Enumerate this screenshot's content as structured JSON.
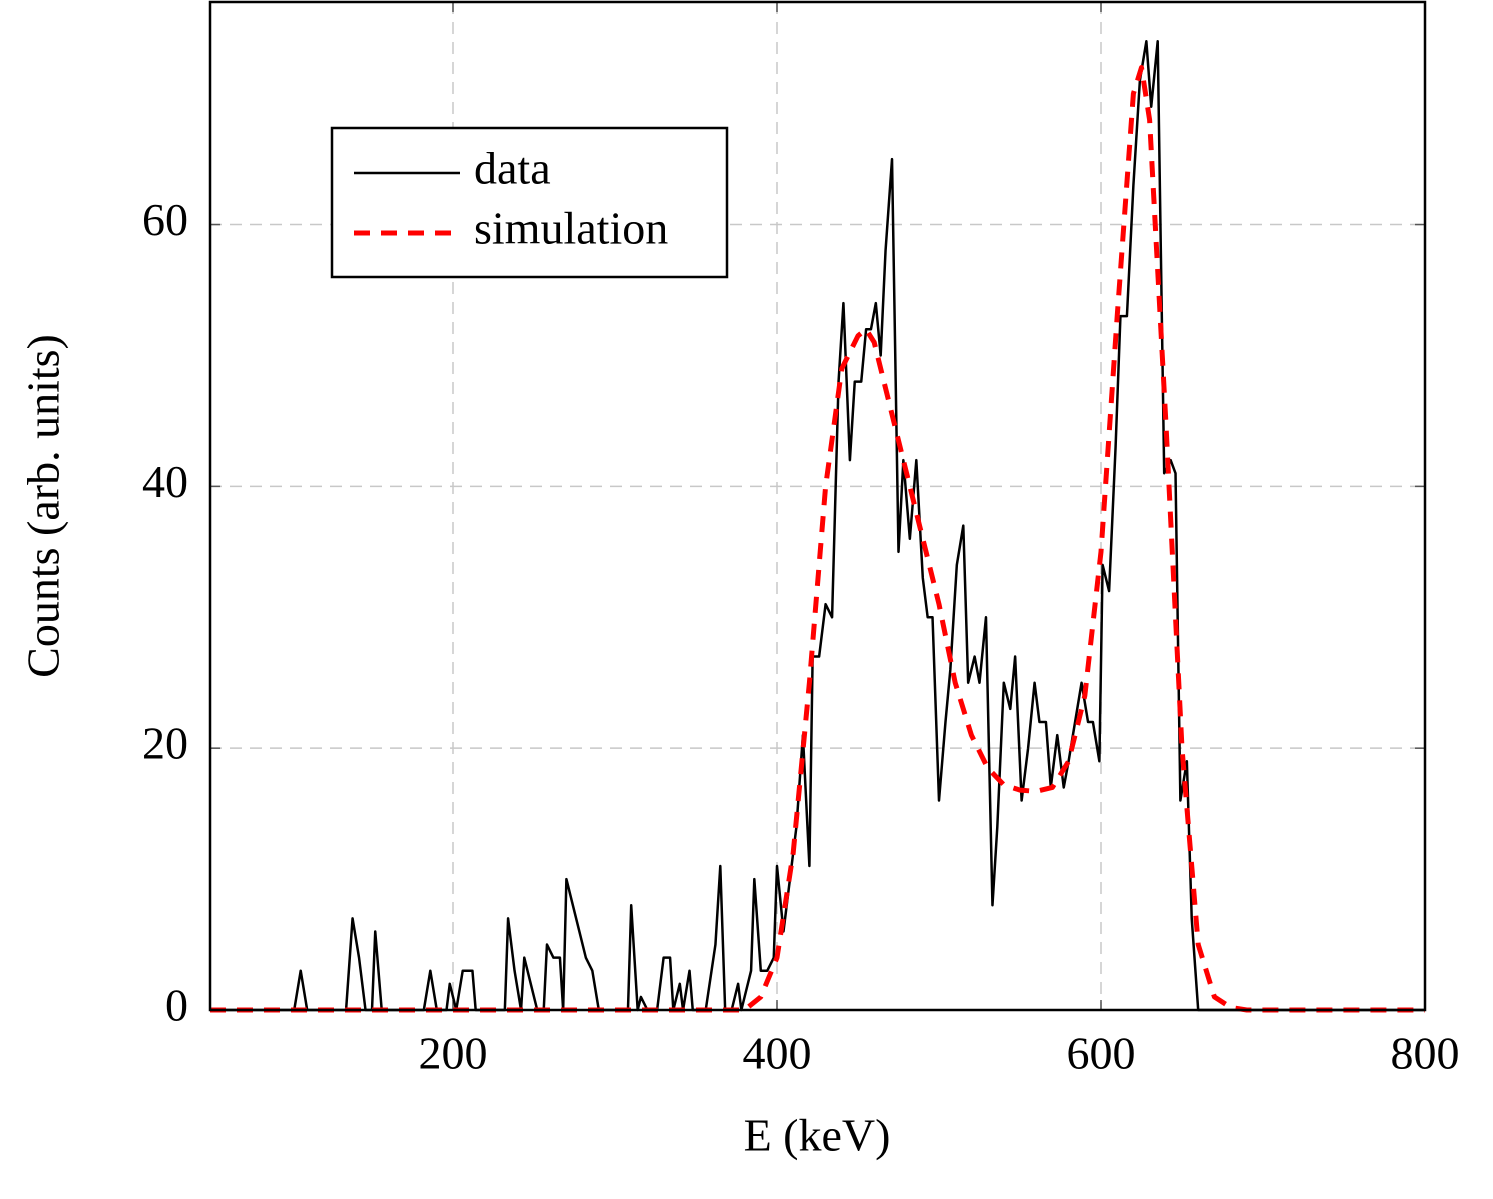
{
  "chart_data": {
    "type": "line",
    "x_label": "E (keV)",
    "y_label": "Counts (arb. units)",
    "xlim": [
      50,
      800
    ],
    "ylim": [
      0,
      77
    ],
    "xticks": [
      200,
      400,
      600,
      800
    ],
    "yticks": [
      0,
      20,
      40,
      60
    ],
    "grid": true,
    "legend": "upper left",
    "series": [
      {
        "name": "data",
        "color": "#000000",
        "dash": false,
        "x": [
          50,
          102,
          106,
          110,
          134,
          138,
          142,
          146,
          150,
          152,
          156,
          182,
          186,
          190,
          196,
          198,
          202,
          206,
          212,
          214,
          232,
          234,
          238,
          242,
          244,
          248,
          252,
          256,
          258,
          262,
          266,
          268,
          270,
          274,
          278,
          282,
          286,
          290,
          308,
          310,
          314,
          316,
          320,
          326,
          330,
          334,
          336,
          340,
          342,
          346,
          348,
          356,
          362,
          365,
          368,
          372,
          376,
          378,
          384,
          386,
          390,
          394,
          398,
          400,
          404,
          408,
          412,
          416,
          420,
          422,
          426,
          428,
          430,
          434,
          438,
          441,
          445,
          448,
          452,
          455,
          458,
          461,
          464,
          467,
          471,
          475,
          478,
          482,
          486,
          490,
          493,
          496,
          500,
          504,
          507,
          511,
          515,
          518,
          522,
          525,
          529,
          533,
          536,
          540,
          544,
          547,
          551,
          555,
          559,
          562,
          566,
          569,
          573,
          577,
          580,
          584,
          588,
          592,
          595,
          599,
          601,
          605,
          609,
          612,
          616,
          620,
          624,
          628,
          631,
          635,
          639,
          643,
          646,
          649,
          653,
          656,
          660,
          800
        ],
        "values": [
          0,
          0,
          3,
          0,
          0,
          7,
          4,
          0,
          0,
          6,
          0,
          0,
          3,
          0,
          0,
          2,
          0,
          3,
          3,
          0,
          0,
          7,
          3,
          0,
          4,
          2,
          0,
          0,
          5,
          4,
          4,
          0,
          10,
          8,
          6,
          4,
          3,
          0,
          0,
          8,
          0,
          1,
          0,
          0,
          4,
          4,
          0,
          2,
          0,
          3,
          0,
          0,
          5,
          11,
          0,
          0,
          2,
          0,
          3,
          10,
          3,
          3,
          4,
          11,
          6,
          10,
          14,
          21,
          11,
          27,
          27,
          29,
          31,
          30,
          48,
          54,
          42,
          48,
          48,
          52,
          52,
          54,
          50,
          58,
          65,
          35,
          42,
          36,
          42,
          33,
          30,
          30,
          16,
          22,
          26,
          34,
          37,
          25,
          27,
          25,
          30,
          8,
          14,
          25,
          23,
          27,
          16,
          20,
          25,
          22,
          22,
          17,
          21,
          17,
          19,
          22,
          25,
          22,
          22,
          19,
          34,
          32,
          43,
          53,
          53,
          63,
          71,
          74,
          69,
          74,
          41,
          42,
          41,
          16,
          19,
          7,
          0,
          0
        ]
      },
      {
        "name": "simulation",
        "color": "#ff0000",
        "dash": true,
        "x": [
          50,
          380,
          390,
          400,
          410,
          420,
          430,
          440,
          450,
          455,
          460,
          470,
          480,
          490,
          500,
          510,
          520,
          530,
          540,
          550,
          560,
          570,
          580,
          590,
          600,
          610,
          620,
          625,
          630,
          640,
          650,
          660,
          670,
          680,
          690,
          800
        ],
        "values": [
          0,
          0,
          1,
          4,
          12,
          25,
          40,
          49,
          51.5,
          52,
          51,
          46,
          41,
          36,
          31,
          25,
          21,
          18.5,
          17.2,
          16.8,
          16.7,
          17,
          19,
          24,
          35,
          53,
          70,
          72,
          68,
          45,
          20,
          5,
          1,
          0.2,
          0,
          0
        ]
      }
    ]
  }
}
